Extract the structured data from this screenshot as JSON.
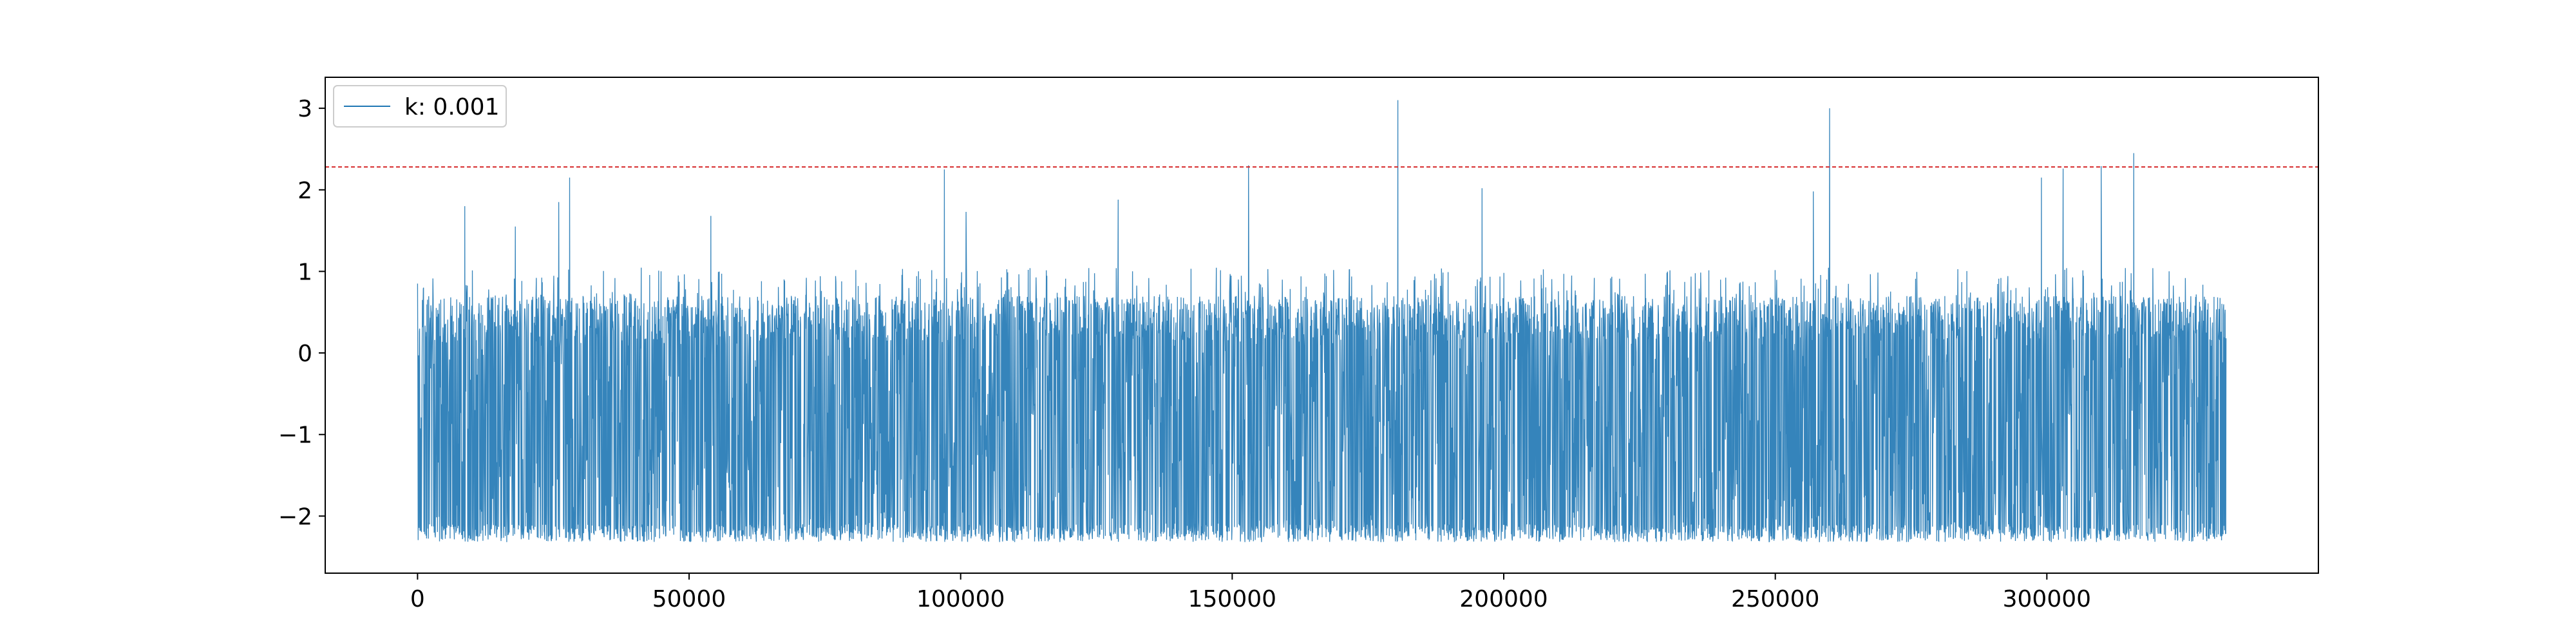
{
  "chart_data": {
    "type": "line",
    "title": "",
    "xlabel": "",
    "ylabel": "",
    "xlim": [
      -17000,
      350000
    ],
    "ylim": [
      -2.7,
      3.38
    ],
    "x_ticks": [
      {
        "value": 0,
        "label": "0"
      },
      {
        "value": 50000,
        "label": "50000"
      },
      {
        "value": 100000,
        "label": "100000"
      },
      {
        "value": 150000,
        "label": "150000"
      },
      {
        "value": 200000,
        "label": "200000"
      },
      {
        "value": 250000,
        "label": "250000"
      },
      {
        "value": 300000,
        "label": "300000"
      }
    ],
    "y_ticks": [
      {
        "value": -2,
        "label": "−2"
      },
      {
        "value": -1,
        "label": "−1"
      },
      {
        "value": 0,
        "label": "0"
      },
      {
        "value": 1,
        "label": "1"
      },
      {
        "value": 2,
        "label": "2"
      },
      {
        "value": 3,
        "label": "3"
      }
    ],
    "grid": false,
    "legend": {
      "position": "top-left",
      "entries": [
        "k: 0.001"
      ]
    },
    "series": [
      {
        "name": "k: 0.001",
        "color": "#1f77b4",
        "x_range": [
          0,
          333000
        ],
        "typical_low": -2.1,
        "typical_high": 0.7,
        "peaks": [
          {
            "x": 0,
            "y": 0.85
          },
          {
            "x": 8700,
            "y": 1.8
          },
          {
            "x": 18000,
            "y": 1.55
          },
          {
            "x": 26000,
            "y": 1.85
          },
          {
            "x": 28000,
            "y": 2.15
          },
          {
            "x": 54000,
            "y": 1.68
          },
          {
            "x": 97000,
            "y": 2.25
          },
          {
            "x": 101000,
            "y": 1.73
          },
          {
            "x": 129000,
            "y": 1.88
          },
          {
            "x": 153000,
            "y": 2.3
          },
          {
            "x": 180500,
            "y": 3.1
          },
          {
            "x": 196000,
            "y": 2.02
          },
          {
            "x": 257000,
            "y": 1.98
          },
          {
            "x": 260000,
            "y": 3.0
          },
          {
            "x": 299000,
            "y": 2.15
          },
          {
            "x": 303000,
            "y": 2.26
          },
          {
            "x": 310000,
            "y": 2.29
          },
          {
            "x": 316000,
            "y": 2.45
          }
        ]
      }
    ],
    "reference_line": {
      "y": 2.28,
      "color": "#d62728",
      "style": "dashed"
    }
  }
}
